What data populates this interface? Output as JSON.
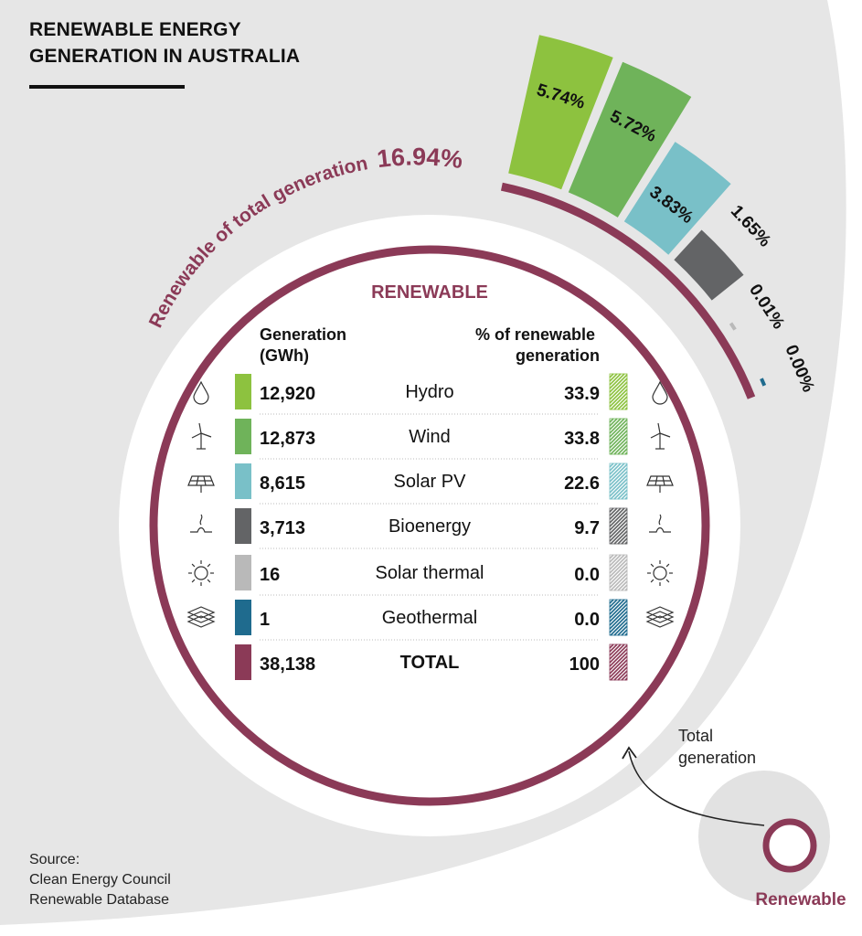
{
  "title_line1": "RENEWABLE ENERGY",
  "title_line2": "GENERATION IN AUSTRALIA",
  "source": [
    "Source:",
    "Clean Energy Council",
    "Renewable Database"
  ],
  "arc_label_prefix": "Renewable of total generation",
  "arc_label_value": "16.94%",
  "table_heading": "RENEWABLE",
  "col_generation": [
    "Generation",
    "(GWh)"
  ],
  "col_percent": [
    "% of renewable",
    "generation"
  ],
  "legend": {
    "total_label": [
      "Total",
      "generation"
    ],
    "renewable_label": "Renewable"
  },
  "colors": {
    "renewable": "#8b3a57",
    "hydro": "#8dc23f",
    "wind": "#6fb35a",
    "solar_pv": "#79c0c8",
    "bioenergy": "#636466",
    "solar_thermal": "#b9b9b9",
    "geothermal": "#1f6b8e",
    "background_gray": "#e6e6e6"
  },
  "chart_data": {
    "type": "table",
    "title": "RENEWABLE ENERGY GENERATION IN AUSTRALIA",
    "renewable_share_of_total": 16.94,
    "rows": [
      {
        "name": "Hydro",
        "icon": "water-drop-icon",
        "color_key": "hydro",
        "generation": "12,920",
        "percent": "33.9",
        "share_of_total": "5.74%"
      },
      {
        "name": "Wind",
        "icon": "wind-turbine-icon",
        "color_key": "wind",
        "generation": "12,873",
        "percent": "33.8",
        "share_of_total": "5.72%"
      },
      {
        "name": "Solar PV",
        "icon": "solar-panel-icon",
        "color_key": "solar_pv",
        "generation": "8,615",
        "percent": "22.6",
        "share_of_total": "3.83%"
      },
      {
        "name": "Bioenergy",
        "icon": "bioenergy-icon",
        "color_key": "bioenergy",
        "generation": "3,713",
        "percent": "9.7",
        "share_of_total": "1.65%"
      },
      {
        "name": "Solar thermal",
        "icon": "sun-icon",
        "color_key": "solar_thermal",
        "generation": "16",
        "percent": "0.0",
        "share_of_total": "0.01%"
      },
      {
        "name": "Geothermal",
        "icon": "geothermal-layers-icon",
        "color_key": "geothermal",
        "generation": "1",
        "percent": "0.0",
        "share_of_total": "0.00%"
      }
    ],
    "total": {
      "name": "TOTAL",
      "color_key": "renewable",
      "generation": "38,138",
      "percent": "100"
    }
  }
}
